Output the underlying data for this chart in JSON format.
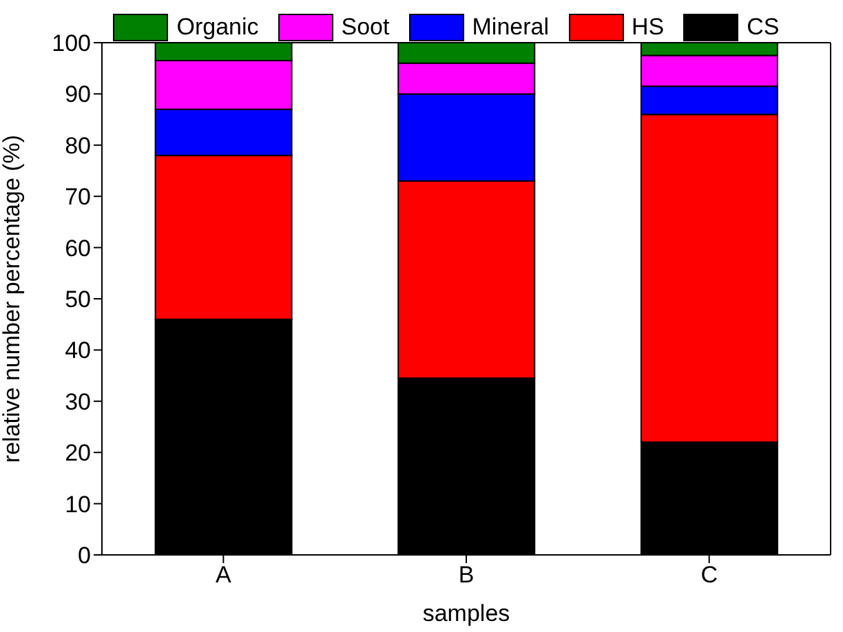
{
  "chart_data": {
    "type": "bar",
    "stacked": true,
    "xlabel": "samples",
    "ylabel": "relative number percentage (%)",
    "categories": [
      "A",
      "B",
      "C"
    ],
    "series": [
      {
        "name": "CS",
        "color": "#000000",
        "values": [
          46,
          34.5,
          22
        ]
      },
      {
        "name": "HS",
        "color": "#ff0000",
        "values": [
          32,
          38.5,
          64
        ]
      },
      {
        "name": "Mineral",
        "color": "#0000ff",
        "values": [
          9,
          17,
          5.5
        ]
      },
      {
        "name": "Soot",
        "color": "#ff00ff",
        "values": [
          9.5,
          6,
          6
        ]
      },
      {
        "name": "Organic",
        "color": "#008000",
        "values": [
          3.5,
          4,
          2.5
        ]
      }
    ],
    "ylim": [
      0,
      100
    ],
    "yticks": [
      0,
      10,
      20,
      30,
      40,
      50,
      60,
      70,
      80,
      90,
      100
    ],
    "grid": false,
    "legend": "top"
  }
}
